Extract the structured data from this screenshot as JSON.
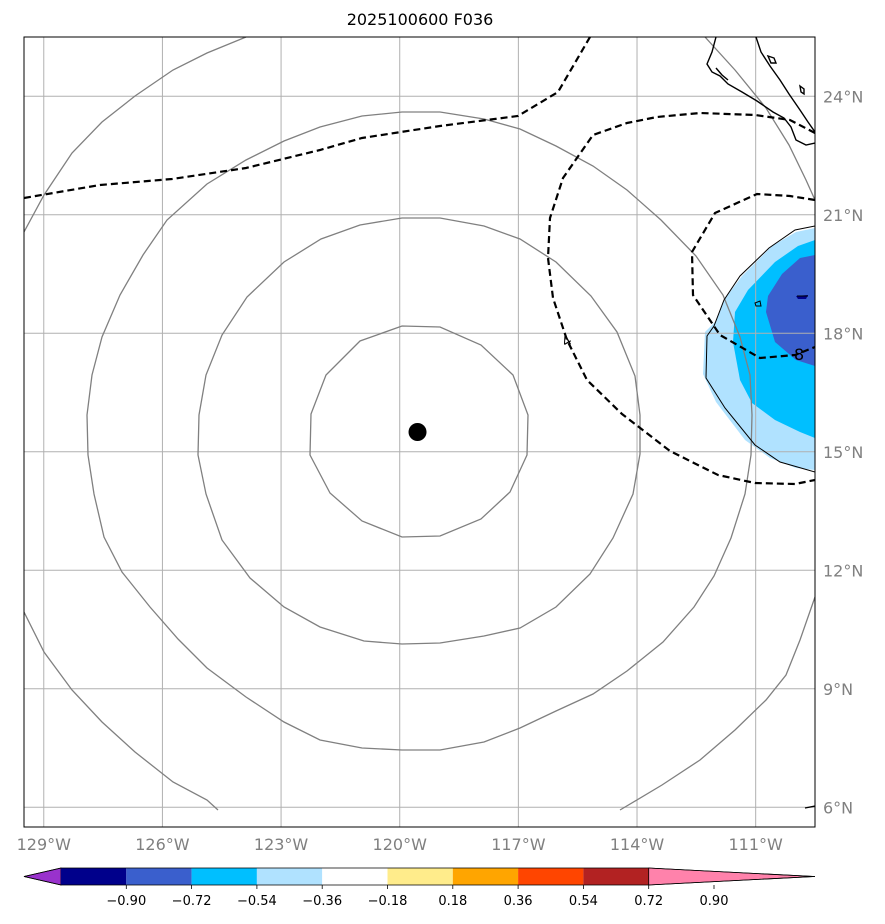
{
  "title": "2025100600 F036",
  "map": {
    "lon_range": [
      -129.5,
      -109.5
    ],
    "lat_range": [
      5.5,
      25.5
    ],
    "lat_ticks": [
      {
        "value": 24,
        "label": "24°N"
      },
      {
        "value": 21,
        "label": "21°N"
      },
      {
        "value": 18,
        "label": "18°N"
      },
      {
        "value": 15,
        "label": "15°N"
      },
      {
        "value": 12,
        "label": "12°N"
      },
      {
        "value": 9,
        "label": "9°N"
      },
      {
        "value": 6,
        "label": "6°N"
      }
    ],
    "lon_ticks": [
      {
        "value": -129,
        "label": "129°W"
      },
      {
        "value": -126,
        "label": "126°W"
      },
      {
        "value": -123,
        "label": "123°W"
      },
      {
        "value": -120,
        "label": "120°W"
      },
      {
        "value": -117,
        "label": "117°W"
      },
      {
        "value": -114,
        "label": "114°W"
      },
      {
        "value": -111,
        "label": "111°W"
      }
    ],
    "grid": true,
    "center_marker": {
      "lon": -119.55,
      "lat": 15.5
    },
    "contour_labels": [
      "4",
      "8"
    ]
  },
  "colorbar": {
    "extend": "both",
    "colors": [
      "#9932CC",
      "#00008B",
      "#3A5FCD",
      "#00BFFF",
      "#B0E2FF",
      "#FFFFFF",
      "#FFEC8B",
      "#FFA500",
      "#FF4500",
      "#B22222",
      "#FF82AB"
    ],
    "tick_labels": [
      "−0.90",
      "−0.72",
      "−0.54",
      "−0.36",
      "−0.18",
      "0.18",
      "0.36",
      "0.54",
      "0.72",
      "0.90"
    ]
  },
  "colors": {
    "grid": "#b0b0b0",
    "range_rings": "#808080",
    "coast": "#000000",
    "dashed_contours": "#000000"
  }
}
